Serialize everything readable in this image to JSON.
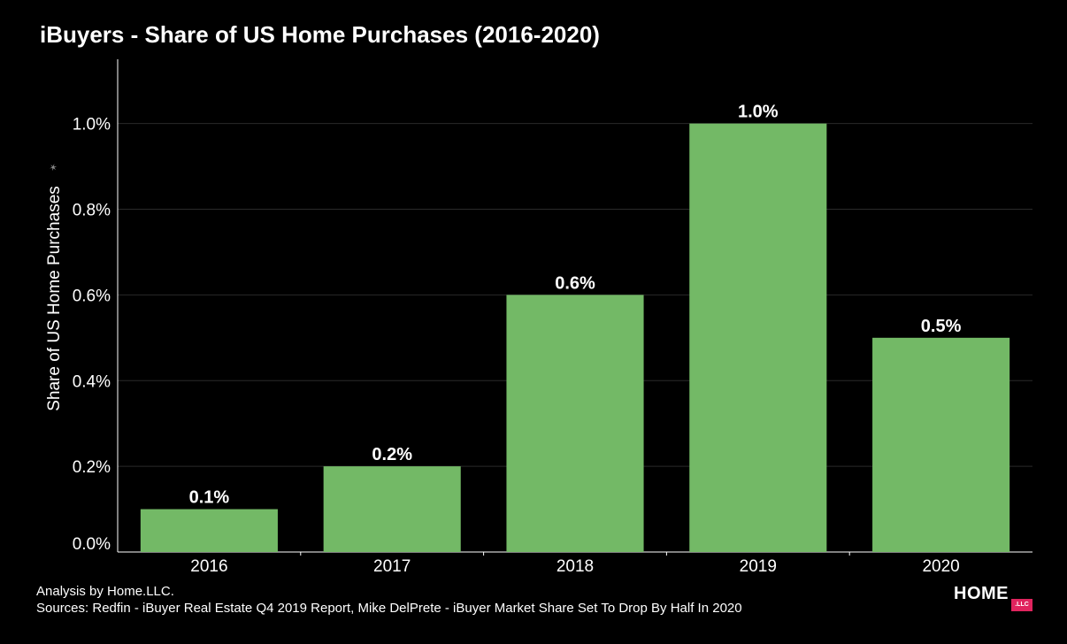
{
  "title": "iBuyers - Share of US Home Purchases (2016-2020)",
  "footer": {
    "line1": "Analysis by Home.LLC.",
    "line2": "Sources: Redfin - iBuyer Real Estate Q4 2019 Report, Mike DelPrete - iBuyer Market Share Set To Drop By Half In 2020"
  },
  "logo": {
    "text": "HOME",
    "badge": ".LLC"
  },
  "chart_data": {
    "type": "bar",
    "title": "iBuyers - Share of US Home Purchases (2016-2020)",
    "xlabel": "",
    "ylabel": "Share of US Home Purchases",
    "categories": [
      "2016",
      "2017",
      "2018",
      "2019",
      "2020"
    ],
    "values": [
      0.1,
      0.2,
      0.6,
      1.0,
      0.5
    ],
    "value_labels": [
      "0.1%",
      "0.2%",
      "0.6%",
      "1.0%",
      "0.5%"
    ],
    "yticks": [
      0.0,
      0.2,
      0.4,
      0.6,
      0.8,
      1.0
    ],
    "ytick_labels": [
      "0.0%",
      "0.2%",
      "0.4%",
      "0.6%",
      "0.8%",
      "1.0%"
    ],
    "ylim": [
      0,
      1.15
    ],
    "grid": true,
    "bar_color": "#73b966",
    "background": "#000000",
    "grid_color": "#2a2a2a"
  }
}
